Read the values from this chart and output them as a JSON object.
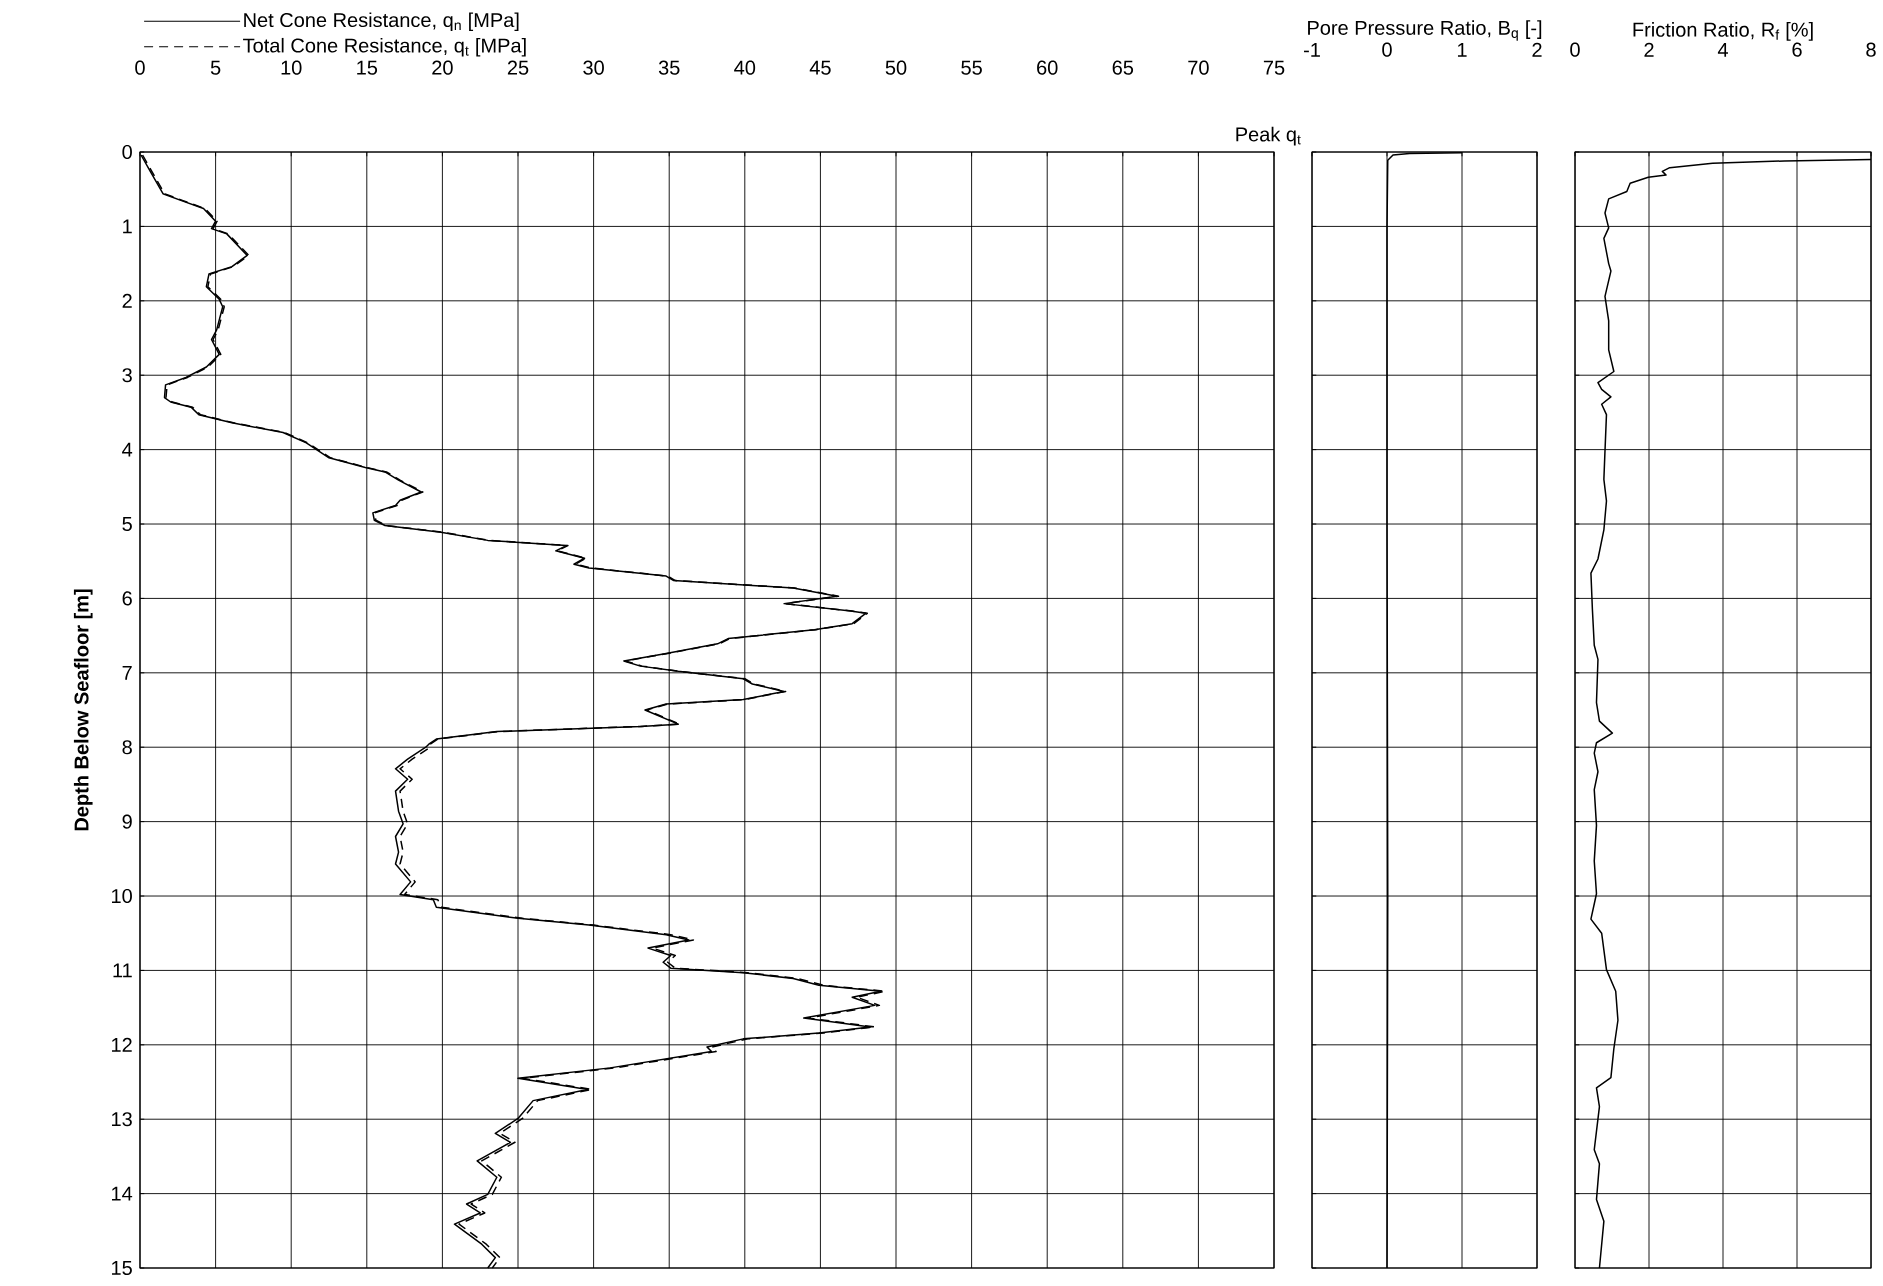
{
  "chart_data": [
    {
      "type": "line",
      "ylabel": "**Depth Below Seafloor [m]**",
      "xlim": [
        0,
        75
      ],
      "ylim": [
        15,
        0
      ],
      "xticks": [
        0,
        5,
        10,
        15,
        20,
        25,
        30,
        35,
        40,
        45,
        50,
        55,
        60,
        65,
        70,
        75
      ],
      "yticks": [
        0,
        1,
        2,
        3,
        4,
        5,
        6,
        7,
        8,
        9,
        10,
        11,
        12,
        13,
        14,
        15
      ],
      "grid": true,
      "legend": "top left",
      "annotations": [
        "Peak q$_{t}$"
      ],
      "series": [
        {
          "name": "Net Cone Resistance, q$_{n}$ [MPa]",
          "color": "#000000",
          "line_style": "solid",
          "x": [
            0.07,
            0.68,
            1.52,
            2.7,
            4.2,
            5.0,
            4.73,
            5.74,
            7.09,
            6.08,
            4.56,
            4.39,
            5.24,
            5.47,
            5.07,
            4.73,
            5.24,
            4.39,
            3.04,
            1.69,
            1.62,
            2.03,
            3.38,
            3.89,
            6.08,
            9.46,
            11.0,
            12.5,
            14.9,
            16.2,
            17.1,
            18.6,
            17.2,
            16.9,
            15.4,
            15.5,
            16.2,
            19.9,
            23.0,
            28.2,
            27.5,
            29.4,
            28.7,
            29.7,
            34.8,
            35.3,
            43.2,
            46.1,
            42.6,
            47.0,
            48.0,
            47.1,
            44.6,
            38.9,
            38.2,
            34.8,
            32.0,
            33.1,
            35.6,
            39.9,
            40.5,
            42.6,
            39.9,
            34.8,
            33.4,
            35.6,
            33.1,
            23.6,
            19.6,
            19.1,
            18.9,
            17.7,
            16.9,
            17.7,
            16.9,
            17.1,
            17.4,
            16.9,
            17.1,
            16.9,
            17.9,
            17.2,
            19.4,
            19.6,
            25.0,
            29.7,
            34.8,
            36.3,
            33.6,
            35.1,
            34.6,
            35.1,
            39.9,
            43.2,
            44.9,
            49.0,
            47.1,
            48.6,
            43.9,
            48.3,
            44.9,
            39.9,
            37.5,
            37.8,
            31.1,
            25.0,
            29.6,
            26.0,
            25.0,
            23.5,
            24.5,
            22.3,
            23.6,
            23.0,
            21.6,
            22.5,
            20.8,
            22.6,
            23.5,
            23.0
          ],
          "values": [
            0.04,
            0.26,
            0.56,
            0.65,
            0.76,
            0.93,
            1.03,
            1.1,
            1.39,
            1.54,
            1.64,
            1.81,
            1.98,
            2.08,
            2.39,
            2.52,
            2.72,
            2.89,
            3.03,
            3.13,
            3.3,
            3.36,
            3.43,
            3.53,
            3.64,
            3.77,
            3.91,
            4.11,
            4.24,
            4.3,
            4.41,
            4.57,
            4.68,
            4.75,
            4.85,
            4.95,
            5.02,
            5.11,
            5.22,
            5.29,
            5.36,
            5.46,
            5.54,
            5.59,
            5.7,
            5.76,
            5.86,
            5.97,
            6.07,
            6.17,
            6.2,
            6.34,
            6.42,
            6.54,
            6.61,
            6.74,
            6.84,
            6.91,
            6.98,
            7.08,
            7.15,
            7.25,
            7.36,
            7.42,
            7.5,
            7.69,
            7.72,
            7.79,
            7.89,
            7.96,
            8.0,
            8.16,
            8.29,
            8.43,
            8.59,
            8.86,
            9.03,
            9.2,
            9.41,
            9.57,
            9.81,
            9.98,
            10.05,
            10.15,
            10.3,
            10.39,
            10.52,
            10.59,
            10.7,
            10.8,
            10.89,
            10.97,
            11.03,
            11.11,
            11.2,
            11.28,
            11.36,
            11.47,
            11.64,
            11.76,
            11.84,
            11.92,
            12.03,
            12.09,
            12.31,
            12.45,
            12.6,
            12.75,
            12.99,
            13.19,
            13.31,
            13.56,
            13.78,
            14.01,
            14.14,
            14.26,
            14.41,
            14.68,
            14.86,
            15.0
          ]
        },
        {
          "name": "Total Cone Resistance, q$_{t}$ [MPa]",
          "color": "#000000",
          "line_style": "dashed",
          "x": [
            0.17,
            0.78,
            1.62,
            2.8,
            4.3,
            5.1,
            4.83,
            5.84,
            7.19,
            6.18,
            4.66,
            4.49,
            5.34,
            5.57,
            5.17,
            4.83,
            5.34,
            4.49,
            3.14,
            1.79,
            1.72,
            2.13,
            3.48,
            3.99,
            6.18,
            9.56,
            11.1,
            12.6,
            15.0,
            16.3,
            17.2,
            18.7,
            17.3,
            17.0,
            15.5,
            15.6,
            16.3,
            20.0,
            23.1,
            28.3,
            27.6,
            29.5,
            28.8,
            29.8,
            34.9,
            35.4,
            43.3,
            46.2,
            42.7,
            47.1,
            48.1,
            47.2,
            44.7,
            39.0,
            38.3,
            34.9,
            32.1,
            33.2,
            35.7,
            40.0,
            40.6,
            42.7,
            40.0,
            34.9,
            33.5,
            35.7,
            33.2,
            23.7,
            19.7,
            19.2,
            19.2,
            18.0,
            17.2,
            18.0,
            17.2,
            17.4,
            17.7,
            17.2,
            17.4,
            17.2,
            18.2,
            17.5,
            19.7,
            19.9,
            25.3,
            30.0,
            35.1,
            36.6,
            33.9,
            35.4,
            34.9,
            35.4,
            40.2,
            43.5,
            45.2,
            49.3,
            47.4,
            48.9,
            44.2,
            48.6,
            45.2,
            40.2,
            37.8,
            38.1,
            31.4,
            25.3,
            29.9,
            26.3,
            25.3,
            23.8,
            24.8,
            22.6,
            23.9,
            23.3,
            21.9,
            22.8,
            21.1,
            22.9,
            23.8,
            23.3
          ],
          "values": [
            0.04,
            0.26,
            0.56,
            0.65,
            0.76,
            0.93,
            1.03,
            1.1,
            1.39,
            1.54,
            1.64,
            1.81,
            1.98,
            2.08,
            2.39,
            2.52,
            2.72,
            2.89,
            3.03,
            3.13,
            3.3,
            3.36,
            3.43,
            3.53,
            3.64,
            3.77,
            3.91,
            4.11,
            4.24,
            4.3,
            4.41,
            4.57,
            4.68,
            4.75,
            4.85,
            4.95,
            5.02,
            5.11,
            5.22,
            5.29,
            5.36,
            5.46,
            5.54,
            5.59,
            5.7,
            5.76,
            5.86,
            5.97,
            6.07,
            6.17,
            6.2,
            6.34,
            6.42,
            6.54,
            6.61,
            6.74,
            6.84,
            6.91,
            6.98,
            7.08,
            7.15,
            7.25,
            7.36,
            7.42,
            7.5,
            7.69,
            7.72,
            7.79,
            7.89,
            7.96,
            8.0,
            8.16,
            8.29,
            8.43,
            8.59,
            8.86,
            9.03,
            9.2,
            9.41,
            9.57,
            9.81,
            9.98,
            10.05,
            10.15,
            10.3,
            10.39,
            10.52,
            10.59,
            10.7,
            10.8,
            10.89,
            10.97,
            11.03,
            11.11,
            11.2,
            11.28,
            11.36,
            11.47,
            11.64,
            11.76,
            11.84,
            11.92,
            12.03,
            12.09,
            12.31,
            12.45,
            12.6,
            12.75,
            12.99,
            13.19,
            13.31,
            13.56,
            13.78,
            14.01,
            14.14,
            14.26,
            14.41,
            14.68,
            14.86,
            15.0
          ]
        }
      ]
    },
    {
      "type": "line",
      "xlabel": "Pore Pressure Ratio, B$_{q}$ [-]",
      "xlim": [
        -1,
        2
      ],
      "ylim": [
        15,
        0
      ],
      "xticks": [
        -1,
        0,
        1,
        2
      ],
      "yticks": [
        0,
        1,
        2,
        3,
        4,
        5,
        6,
        7,
        8,
        9,
        10,
        11,
        12,
        13,
        14,
        15
      ],
      "grid": true,
      "tick_labels": "x",
      "series": [
        {
          "color": "#000000",
          "line_style": "solid",
          "x": [
            1.0,
            0.3,
            0.08,
            0.01,
            0.0,
            0.0,
            0.01,
            0.0
          ],
          "values": [
            0.01,
            0.02,
            0.04,
            0.11,
            1.0,
            5.0,
            10.0,
            15.0
          ]
        }
      ]
    },
    {
      "type": "line",
      "xlabel": "Friction Ratio, R$_{f}$ [%]",
      "xlim": [
        0,
        8
      ],
      "ylim": [
        15,
        0
      ],
      "xticks": [
        0,
        2,
        4,
        6,
        8
      ],
      "yticks": [
        0,
        1,
        2,
        3,
        4,
        5,
        6,
        7,
        8,
        9,
        10,
        11,
        12,
        13,
        14,
        15
      ],
      "grid": true,
      "tick_labels": "x",
      "series": [
        {
          "color": "#000000",
          "line_style": "solid",
          "x": [
            8.0,
            5.66,
            3.72,
            2.56,
            2.36,
            2.46,
            1.98,
            1.49,
            1.4,
            0.91,
            0.81,
            0.91,
            0.78,
            0.91,
            0.97,
            0.81,
            0.91,
            0.91,
            1.05,
            0.62,
            0.72,
            0.97,
            0.72,
            0.85,
            0.81,
            0.78,
            0.85,
            0.78,
            0.62,
            0.43,
            0.47,
            0.52,
            0.62,
            0.58,
            0.66,
            1.01,
            0.58,
            0.52,
            0.62,
            0.52,
            0.58,
            0.52,
            0.58,
            0.43,
            0.72,
            0.85,
            1.1,
            1.16,
            1.05,
            0.97,
            0.58,
            0.66,
            0.52,
            0.66,
            0.58,
            0.78,
            0.66
          ],
          "values": [
            0.1,
            0.12,
            0.15,
            0.21,
            0.26,
            0.31,
            0.34,
            0.42,
            0.53,
            0.63,
            0.82,
            1.02,
            1.16,
            1.5,
            1.6,
            1.94,
            2.27,
            2.66,
            2.95,
            3.1,
            3.19,
            3.29,
            3.39,
            3.53,
            4.02,
            4.4,
            4.69,
            5.08,
            5.47,
            5.66,
            6.15,
            6.63,
            6.82,
            7.4,
            7.65,
            7.81,
            7.94,
            8.08,
            8.33,
            8.57,
            9.05,
            9.53,
            9.97,
            10.31,
            10.5,
            10.99,
            11.28,
            11.67,
            12.05,
            12.44,
            12.58,
            12.83,
            13.41,
            13.6,
            14.08,
            14.37,
            15.0
          ]
        }
      ]
    }
  ]
}
